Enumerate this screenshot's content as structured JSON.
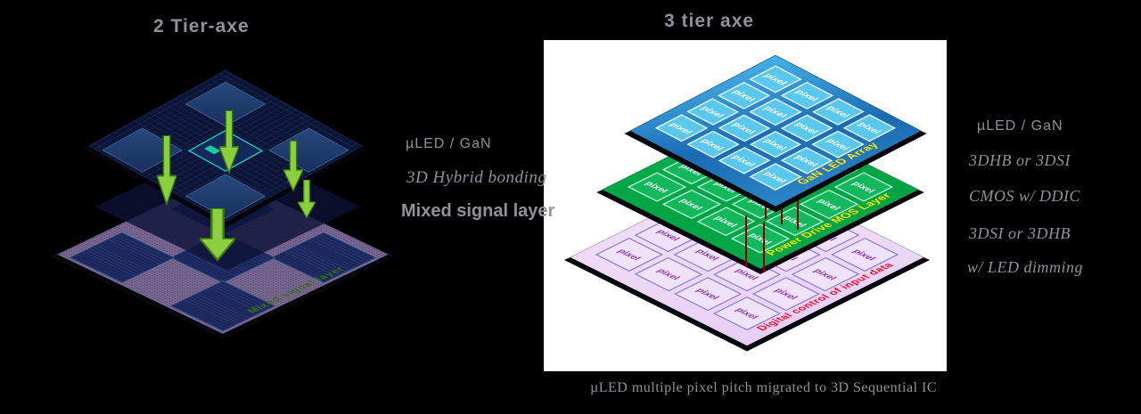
{
  "figure": {
    "left_title": "2 Tier-axe",
    "right_title": "3 tier axe",
    "caption": "µLED multiple pixel pitch migrated to 3D Sequential IC"
  },
  "left_annotation": {
    "line1": "µLED / GaN",
    "line2": "3D Hybrid bonding",
    "line3": "Mixed signal layer"
  },
  "right_annotation": {
    "line1": "µLED / GaN",
    "line2": "3DHB or 3DSI",
    "line3": "CMOS w/ DDIC",
    "line4": "3DSI or 3DHB",
    "line5": "w/ LED dimming"
  },
  "left_diagram": {
    "base_label": "Mixed signal layer"
  },
  "right_diagram": {
    "layers": [
      {
        "name": "GaN LED Array",
        "pixel_label": "pixel",
        "rows": 4,
        "cols": 4
      },
      {
        "name": "Power Drive MOS Layer",
        "pixel_label": "pixel",
        "rows": 4,
        "cols": 4
      },
      {
        "name": "Digital control of input data",
        "pixel_label": "pixel",
        "rows": 4,
        "cols": 4
      }
    ]
  },
  "colors": {
    "background": "#000000",
    "panel": "#ffffff",
    "faint_text": "#8e9298",
    "purple_base": "#7a6a94",
    "navy_square": "#1a2758",
    "chip_bg": "#0b1434",
    "chip_square": "#27497c",
    "chip_center_border": "#19c8c4",
    "arrow_green": "#8ad03e",
    "arrow_edge": "#3e7a12",
    "blue_layer": "#1a6ab2",
    "blue_layer_light": "#45b0e8",
    "blue_pixel": "#58c8ee",
    "green_layer": "#00a344",
    "green_pixel": "#14b85c",
    "pink_layer": "#ecd8f6",
    "pink_pixel": "#f0e2fa",
    "pink_pixel_border": "#8d7fd6",
    "pink_pixel_text": "#8a35b8",
    "label_yellow": "#ffe400",
    "label_red": "#e8102a",
    "base_label_green": "#3f6b1d",
    "connector_red": "#8b0000"
  }
}
